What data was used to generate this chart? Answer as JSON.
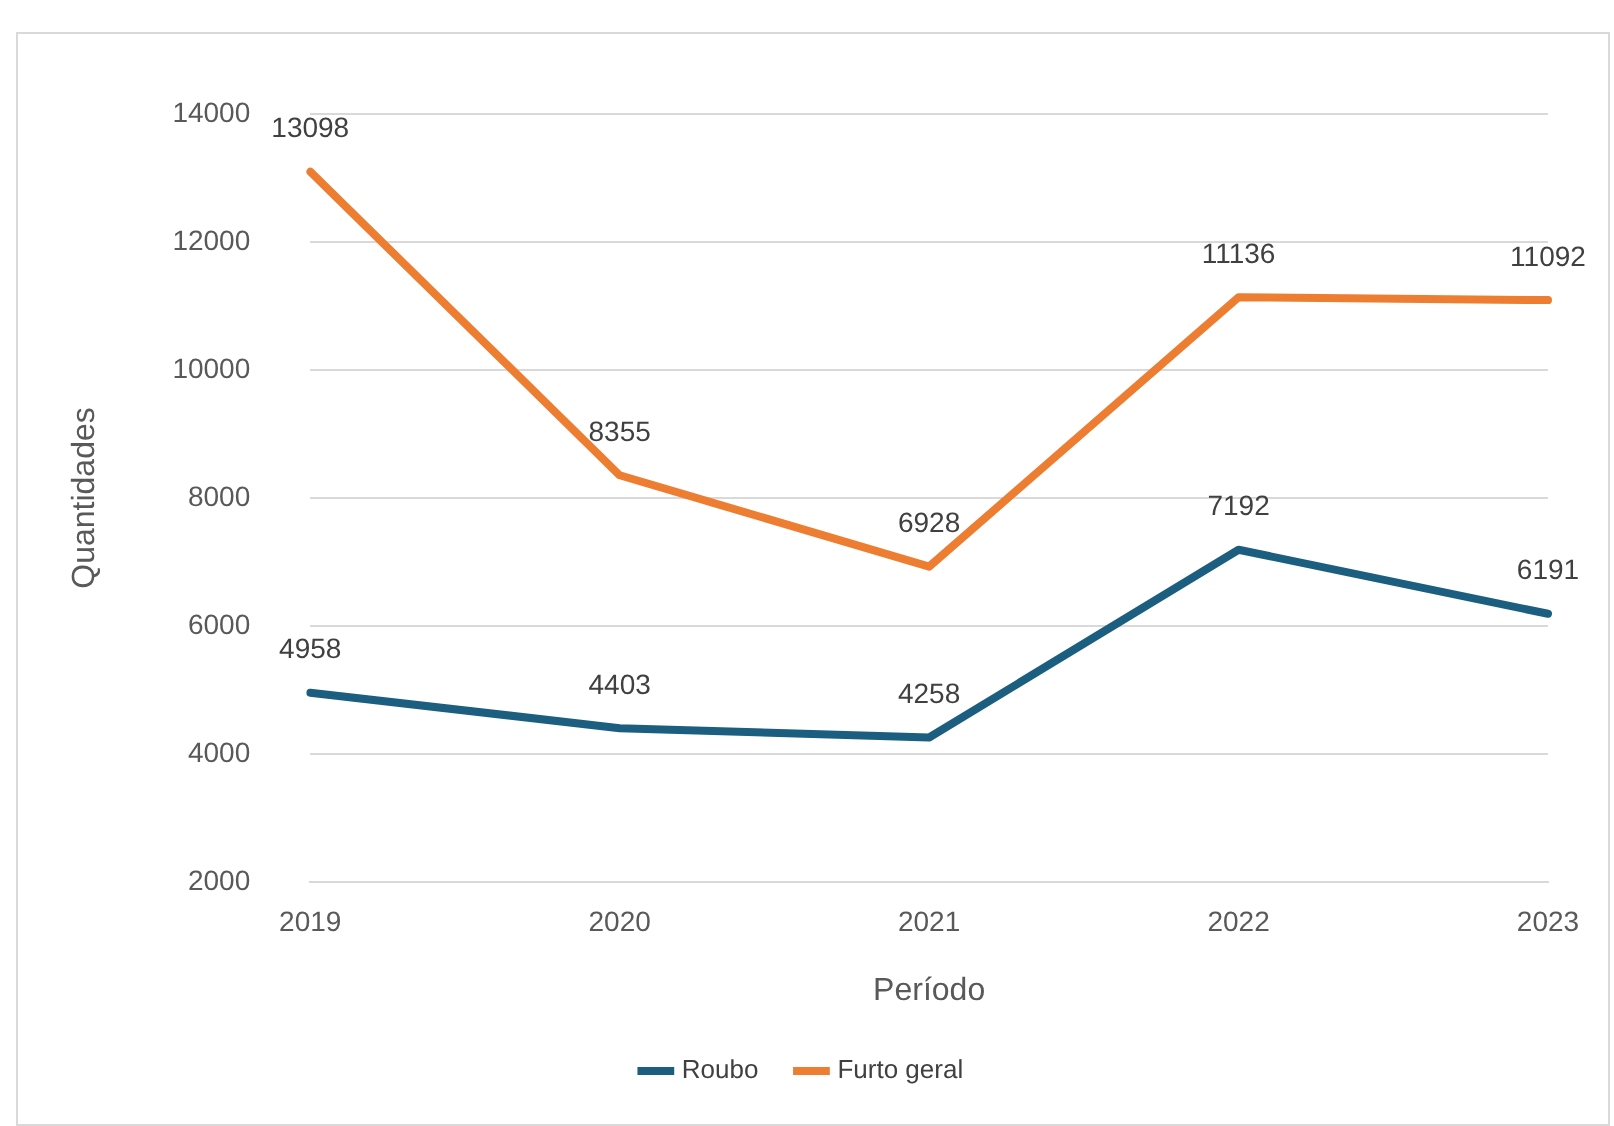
{
  "chart_data": {
    "type": "line",
    "xlabel": "Período",
    "ylabel": "Quantidades",
    "categories": [
      "2019",
      "2020",
      "2021",
      "2022",
      "2023"
    ],
    "series": [
      {
        "name": "Roubo",
        "color": "#1b5e7f",
        "values": [
          4958,
          4403,
          4258,
          7192,
          6191
        ]
      },
      {
        "name": "Furto geral",
        "color": "#ed7d31",
        "values": [
          13098,
          8355,
          6928,
          11136,
          11092
        ]
      }
    ],
    "ylim": [
      2000,
      14000
    ],
    "yticks": [
      2000,
      4000,
      6000,
      8000,
      10000,
      12000,
      14000
    ],
    "grid": "y",
    "legend": "bottom",
    "data_labels": true,
    "marker": "none",
    "line_style": "solid"
  }
}
